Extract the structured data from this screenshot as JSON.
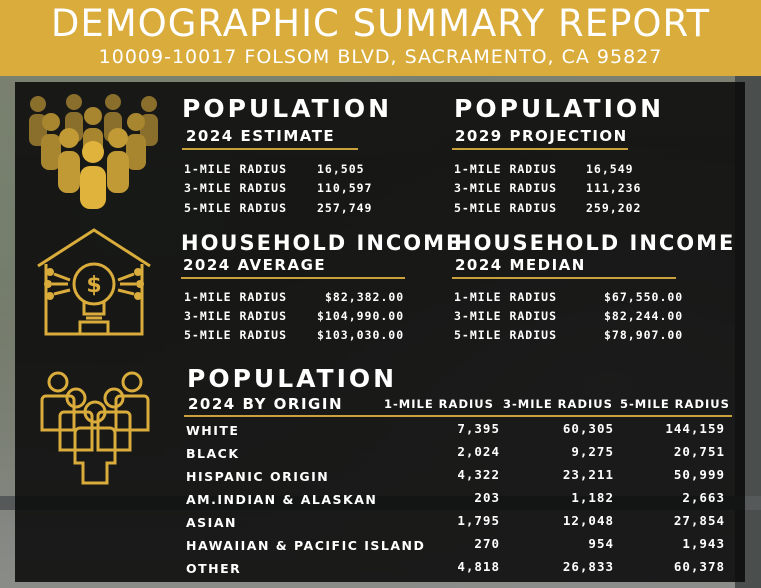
{
  "header": {
    "title": "DEMOGRAPHIC SUMMARY REPORT",
    "address": "10009-10017 FOLSOM BLVD, SACRAMENTO, CA 95827"
  },
  "population_2024": {
    "title": "POPULATION",
    "subtitle": "2024 ESTIMATE",
    "rows": [
      {
        "label": "1-MILE RADIUS",
        "value": "16,505"
      },
      {
        "label": "3-MILE RADIUS",
        "value": "110,597"
      },
      {
        "label": "5-MILE RADIUS",
        "value": "257,749"
      }
    ]
  },
  "population_2029": {
    "title": "POPULATION",
    "subtitle": "2029 PROJECTION",
    "rows": [
      {
        "label": "1-MILE RADIUS",
        "value": "16,549"
      },
      {
        "label": "3-MILE RADIUS",
        "value": "111,236"
      },
      {
        "label": "5-MILE RADIUS",
        "value": "259,202"
      }
    ]
  },
  "income_average": {
    "title": "HOUSEHOLD INCOME",
    "subtitle": "2024 AVERAGE",
    "rows": [
      {
        "label": "1-MILE RADIUS",
        "value": "$82,382.00"
      },
      {
        "label": "3-MILE RADIUS",
        "value": "$104,990.00"
      },
      {
        "label": "5-MILE RADIUS",
        "value": "$103,030.00"
      }
    ]
  },
  "income_median": {
    "title": "HOUSEHOLD INCOME",
    "subtitle": "2024 MEDIAN",
    "rows": [
      {
        "label": "1-MILE RADIUS",
        "value": "$67,550.00"
      },
      {
        "label": "3-MILE RADIUS",
        "value": "$82,244.00"
      },
      {
        "label": "5-MILE RADIUS",
        "value": "$78,907.00"
      }
    ]
  },
  "origin": {
    "title": "POPULATION",
    "subtitle": "2024 BY ORIGIN",
    "columns": [
      "1-MILE RADIUS",
      "3-MILE RADIUS",
      "5-MILE RADIUS"
    ],
    "rows": [
      {
        "label": "WHITE",
        "values": [
          "7,395",
          "60,305",
          "144,159"
        ]
      },
      {
        "label": "BLACK",
        "values": [
          "2,024",
          "9,275",
          "20,751"
        ]
      },
      {
        "label": "HISPANIC ORIGIN",
        "values": [
          "4,322",
          "23,211",
          "50,999"
        ]
      },
      {
        "label": "AM.INDIAN & ALASKAN",
        "values": [
          "203",
          "1,182",
          "2,663"
        ]
      },
      {
        "label": "ASIAN",
        "values": [
          "1,795",
          "12,048",
          "27,854"
        ]
      },
      {
        "label": "HAWAIIAN & PACIFIC ISLAND",
        "values": [
          "270",
          "954",
          "1,943"
        ]
      },
      {
        "label": "OTHER",
        "values": [
          "4,818",
          "26,833",
          "60,378"
        ]
      }
    ]
  },
  "colors": {
    "gold": "#d9ac3c",
    "panel": "#0a0a0a"
  },
  "icons": [
    "people-crowd-icon",
    "house-lightbulb-dollar-icon",
    "group-people-outline-icon"
  ]
}
